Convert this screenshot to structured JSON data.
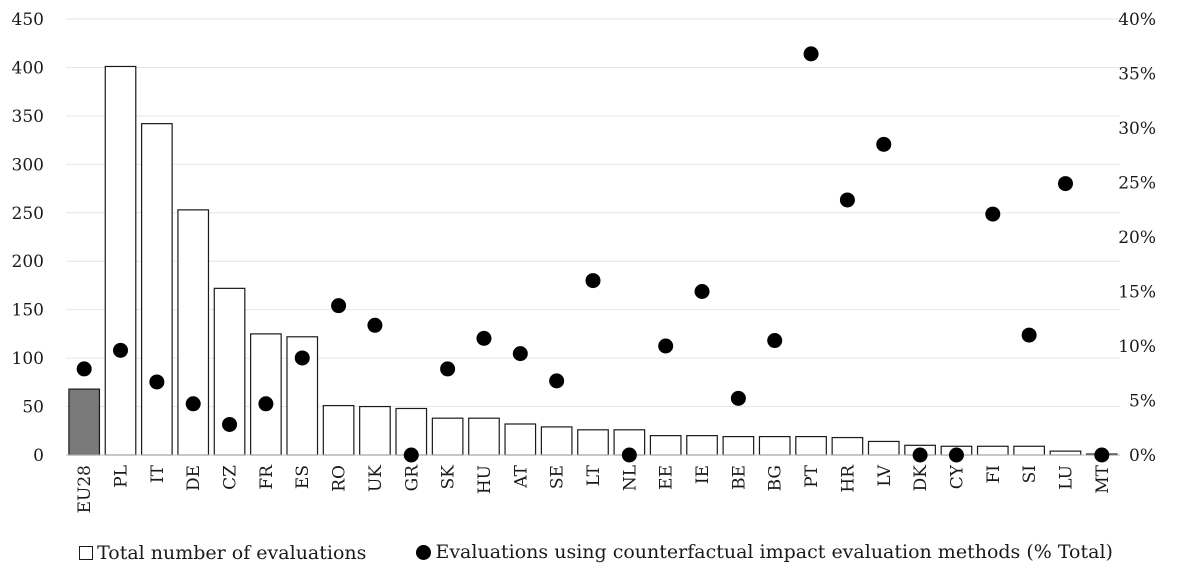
{
  "chart_data": {
    "type": "bar",
    "categories": [
      "EU28",
      "PL",
      "IT",
      "DE",
      "CZ",
      "FR",
      "ES",
      "RO",
      "UK",
      "GR",
      "SK",
      "HU",
      "AT",
      "SE",
      "LT",
      "NL",
      "EE",
      "IE",
      "BE",
      "BG",
      "PT",
      "HR",
      "LV",
      "DK",
      "CY",
      "FI",
      "SI",
      "LU",
      "MT"
    ],
    "series": [
      {
        "name": "Total number of evaluations",
        "kind": "bar",
        "axis": "left",
        "values": [
          68,
          401,
          342,
          253,
          172,
          125,
          122,
          51,
          50,
          48,
          38,
          38,
          32,
          29,
          26,
          26,
          20,
          20,
          19,
          19,
          19,
          18,
          14,
          10,
          9,
          9,
          9,
          4,
          1
        ],
        "highlight_color": "#7a7a7a",
        "highlight_index": 0
      },
      {
        "name": "Evaluations using counterfactual impact evaluation methods (% Total)",
        "kind": "scatter",
        "axis": "right",
        "values": [
          7.9,
          9.6,
          6.7,
          4.7,
          2.8,
          4.7,
          8.9,
          13.7,
          11.9,
          0,
          7.9,
          10.7,
          9.3,
          6.8,
          16.0,
          0,
          10.0,
          15.0,
          5.2,
          10.5,
          36.8,
          23.4,
          28.5,
          0,
          0,
          22.1,
          11.0,
          24.9,
          0
        ]
      }
    ],
    "ylim": [
      0,
      450
    ],
    "y2lim": [
      0,
      40
    ],
    "yticks": [
      "0",
      "50",
      "100",
      "150",
      "200",
      "250",
      "300",
      "350",
      "400",
      "450"
    ],
    "y2ticks": [
      "0%",
      "5%",
      "10%",
      "15%",
      "20%",
      "25%",
      "30%",
      "35%",
      "40%"
    ],
    "grid": true,
    "legend_position": "bottom"
  },
  "legend": {
    "bars_label": "Total number of evaluations",
    "dots_label": "Evaluations using counterfactual impact evaluation methods (% Total)"
  }
}
